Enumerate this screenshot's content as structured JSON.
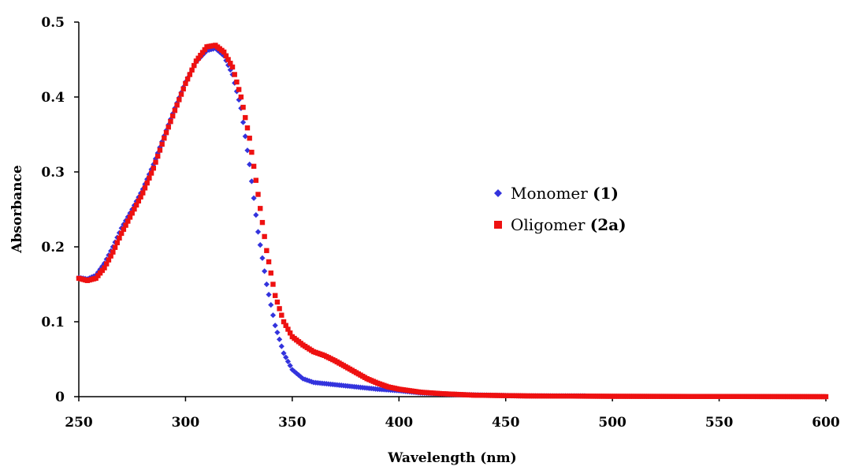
{
  "chart_data": {
    "type": "scatter",
    "xlabel": "Wavelength (nm)",
    "ylabel": "Absorbance",
    "xlim": [
      250,
      600
    ],
    "ylim": [
      0,
      0.5
    ],
    "x_ticks": [
      "250",
      "300",
      "350",
      "400",
      "450",
      "500",
      "550",
      "600"
    ],
    "y_ticks": [
      "0",
      "0.1",
      "0.2",
      "0.3",
      "0.4",
      "0.5"
    ],
    "legend_placement": "center-right",
    "series": [
      {
        "name": "Monomer (1)",
        "name_parts": [
          "Monomer ",
          "(1)"
        ],
        "color": "#3333dd",
        "marker": "diamond",
        "x_end": 487,
        "points": [
          [
            250,
            0.159
          ],
          [
            254,
            0.157
          ],
          [
            258,
            0.162
          ],
          [
            262,
            0.178
          ],
          [
            266,
            0.2
          ],
          [
            270,
            0.225
          ],
          [
            275,
            0.25
          ],
          [
            280,
            0.277
          ],
          [
            285,
            0.31
          ],
          [
            290,
            0.348
          ],
          [
            295,
            0.385
          ],
          [
            300,
            0.42
          ],
          [
            305,
            0.447
          ],
          [
            310,
            0.462
          ],
          [
            314,
            0.465
          ],
          [
            318,
            0.455
          ],
          [
            322,
            0.43
          ],
          [
            326,
            0.385
          ],
          [
            330,
            0.31
          ],
          [
            334,
            0.22
          ],
          [
            338,
            0.15
          ],
          [
            342,
            0.095
          ],
          [
            346,
            0.058
          ],
          [
            350,
            0.036
          ],
          [
            355,
            0.024
          ],
          [
            360,
            0.019
          ],
          [
            370,
            0.016
          ],
          [
            380,
            0.013
          ],
          [
            390,
            0.01
          ],
          [
            400,
            0.008
          ],
          [
            410,
            0.005
          ],
          [
            425,
            0.003
          ],
          [
            440,
            0.002
          ],
          [
            460,
            0.001
          ],
          [
            487,
            0.001
          ]
        ]
      },
      {
        "name": "Oligomer (2a)",
        "name_parts": [
          "Oligomer ",
          "(2a)"
        ],
        "color": "#ee1111",
        "marker": "square",
        "x_end": 600,
        "points": [
          [
            250,
            0.158
          ],
          [
            254,
            0.155
          ],
          [
            258,
            0.158
          ],
          [
            262,
            0.172
          ],
          [
            266,
            0.193
          ],
          [
            270,
            0.218
          ],
          [
            275,
            0.245
          ],
          [
            280,
            0.272
          ],
          [
            285,
            0.305
          ],
          [
            290,
            0.345
          ],
          [
            295,
            0.382
          ],
          [
            300,
            0.418
          ],
          [
            305,
            0.448
          ],
          [
            310,
            0.467
          ],
          [
            314,
            0.469
          ],
          [
            318,
            0.46
          ],
          [
            322,
            0.44
          ],
          [
            326,
            0.4
          ],
          [
            330,
            0.345
          ],
          [
            334,
            0.27
          ],
          [
            338,
            0.195
          ],
          [
            342,
            0.135
          ],
          [
            346,
            0.1
          ],
          [
            350,
            0.08
          ],
          [
            355,
            0.069
          ],
          [
            360,
            0.06
          ],
          [
            365,
            0.055
          ],
          [
            370,
            0.048
          ],
          [
            375,
            0.04
          ],
          [
            380,
            0.032
          ],
          [
            385,
            0.024
          ],
          [
            390,
            0.018
          ],
          [
            395,
            0.013
          ],
          [
            400,
            0.01
          ],
          [
            410,
            0.006
          ],
          [
            420,
            0.004
          ],
          [
            435,
            0.002
          ],
          [
            460,
            0.001
          ],
          [
            500,
            0.0005
          ],
          [
            600,
            0.0
          ]
        ]
      }
    ]
  }
}
